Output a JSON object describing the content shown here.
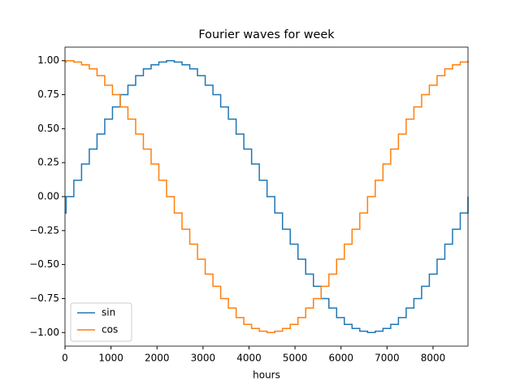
{
  "chart_data": {
    "type": "step",
    "title": "Fourier waves for week",
    "xlabel": "hours",
    "x": [
      0,
      24,
      192,
      360,
      528,
      696,
      864,
      1032,
      1200,
      1368,
      1536,
      1704,
      1872,
      2040,
      2208,
      2376,
      2544,
      2712,
      2880,
      3048,
      3216,
      3384,
      3552,
      3720,
      3888,
      4056,
      4224,
      4392,
      4560,
      4728,
      4896,
      5064,
      5232,
      5400,
      5568,
      5736,
      5904,
      6072,
      6240,
      6408,
      6576,
      6744,
      6912,
      7080,
      7248,
      7416,
      7584,
      7752,
      7920,
      8088,
      8256,
      8424,
      8592,
      8760
    ],
    "series": [
      {
        "name": "sin",
        "color": "#1f77b4",
        "values": [
          -0.12,
          0,
          0.12,
          0.24,
          0.35,
          0.46,
          0.57,
          0.66,
          0.75,
          0.82,
          0.89,
          0.94,
          0.97,
          0.99,
          1,
          0.99,
          0.97,
          0.94,
          0.89,
          0.82,
          0.75,
          0.66,
          0.57,
          0.46,
          0.35,
          0.24,
          0.12,
          0,
          -0.12,
          -0.24,
          -0.35,
          -0.46,
          -0.57,
          -0.66,
          -0.75,
          -0.82,
          -0.89,
          -0.94,
          -0.97,
          -0.99,
          -1,
          -0.99,
          -0.97,
          -0.94,
          -0.89,
          -0.82,
          -0.75,
          -0.66,
          -0.57,
          -0.46,
          -0.35,
          -0.24,
          -0.12,
          0
        ]
      },
      {
        "name": "cos",
        "color": "#ff7f0e",
        "values": [
          0.99,
          1,
          0.99,
          0.97,
          0.94,
          0.89,
          0.82,
          0.75,
          0.66,
          0.57,
          0.46,
          0.35,
          0.24,
          0.12,
          0,
          -0.12,
          -0.24,
          -0.35,
          -0.46,
          -0.57,
          -0.66,
          -0.75,
          -0.82,
          -0.89,
          -0.94,
          -0.97,
          -0.99,
          -1,
          -0.99,
          -0.97,
          -0.94,
          -0.89,
          -0.82,
          -0.75,
          -0.66,
          -0.57,
          -0.46,
          -0.35,
          -0.24,
          -0.12,
          0,
          0.12,
          0.24,
          0.35,
          0.46,
          0.57,
          0.66,
          0.75,
          0.82,
          0.89,
          0.94,
          0.97,
          0.99,
          1
        ]
      }
    ],
    "xlim": [
      0,
      8760
    ],
    "xticks": [
      0,
      1000,
      2000,
      3000,
      4000,
      5000,
      6000,
      7000,
      8000
    ],
    "ylim": [
      -1.1,
      1.1
    ],
    "yticks": [
      {
        "value": -1,
        "label": "−1.00"
      },
      {
        "value": -0.75,
        "label": "−0.75"
      },
      {
        "value": -0.5,
        "label": "−0.50"
      },
      {
        "value": -0.25,
        "label": "−0.25"
      },
      {
        "value": 0,
        "label": "0.00"
      },
      {
        "value": 0.25,
        "label": "0.25"
      },
      {
        "value": 0.5,
        "label": "0.50"
      },
      {
        "value": 0.75,
        "label": "0.75"
      },
      {
        "value": 1,
        "label": "1.00"
      }
    ],
    "legend": "lower left"
  }
}
